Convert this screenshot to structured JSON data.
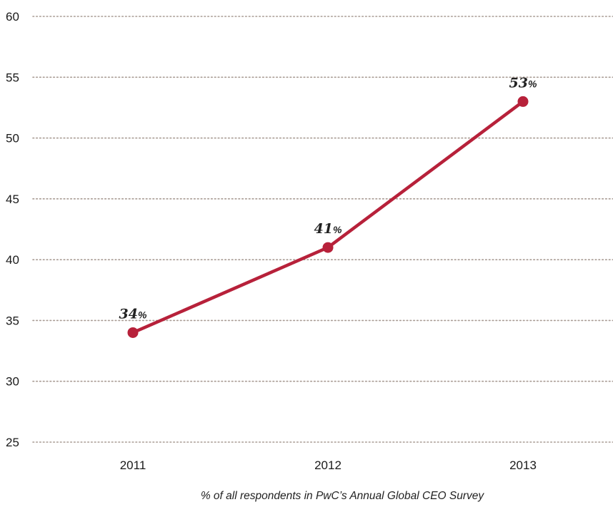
{
  "chart_data": {
    "type": "line",
    "categories": [
      "2011",
      "2012",
      "2013"
    ],
    "series": [
      {
        "values": [
          34,
          41,
          53
        ],
        "labels": [
          "34",
          "41",
          "53"
        ],
        "label_suffix": "%"
      }
    ],
    "ylim": [
      25,
      60
    ],
    "yticks": [
      25,
      30,
      35,
      40,
      45,
      50,
      55,
      60
    ],
    "grid": "horizontal dotted",
    "caption": "% of all respondents in PwC’s Annual Global CEO Survey",
    "colors": {
      "line": "#b7213a",
      "grid": "#a89b93",
      "text": "#1a1a1a"
    }
  }
}
